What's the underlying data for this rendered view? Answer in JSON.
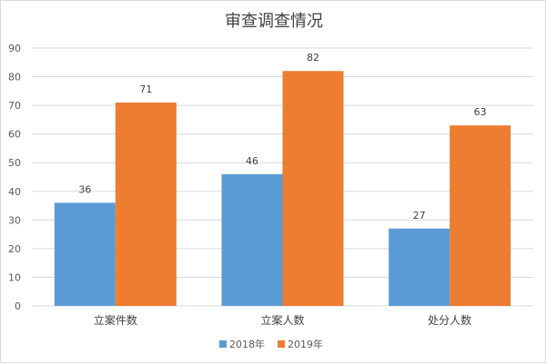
{
  "chart_data": {
    "type": "bar",
    "title": "审查调查情况",
    "categories": [
      "立案件数",
      "立案人数",
      "处分人数"
    ],
    "series": [
      {
        "name": "2018年",
        "values": [
          36,
          46,
          27
        ],
        "color": "#5b9bd5"
      },
      {
        "name": "2019年",
        "values": [
          71,
          82,
          63
        ],
        "color": "#ed7d31"
      }
    ],
    "ylim": [
      0,
      90
    ],
    "yticks": [
      0,
      10,
      20,
      30,
      40,
      50,
      60,
      70,
      80,
      90
    ],
    "grid": true,
    "legend": "bottom",
    "data_labels": true
  }
}
